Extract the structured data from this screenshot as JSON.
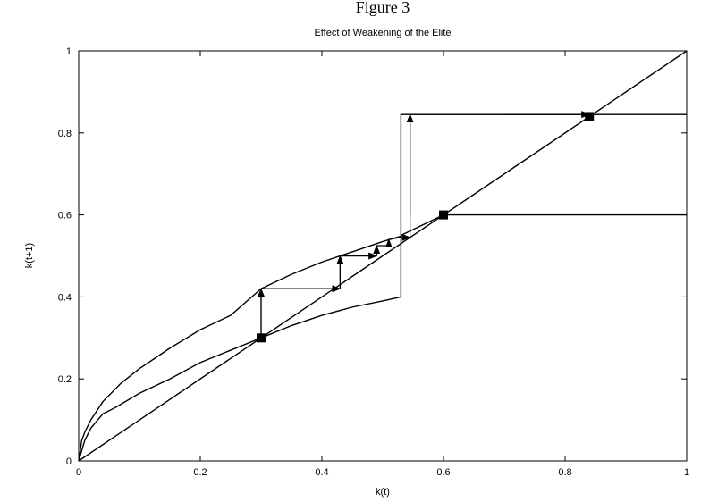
{
  "figure_heading": "Figure 3",
  "chart_data": {
    "type": "line",
    "title": "Effect of Weakening of the Elite",
    "xlabel": "k(t)",
    "ylabel": "k(t+1)",
    "xlim": [
      0,
      1
    ],
    "ylim": [
      0,
      1
    ],
    "x_ticks": [
      "0",
      "0.2",
      "0.4",
      "0.6",
      "0.8",
      "1"
    ],
    "y_ticks": [
      "0",
      "0.2",
      "0.4",
      "0.6",
      "0.8",
      "1"
    ],
    "grid": false,
    "legend": "none",
    "series": [
      {
        "x": [
          0,
          1
        ],
        "y": [
          0,
          1
        ]
      },
      {
        "x": [
          0,
          0.005,
          0.01,
          0.02,
          0.04,
          0.07,
          0.1,
          0.15,
          0.2,
          0.25,
          0.3,
          0.35,
          0.4,
          0.45,
          0.5,
          0.53
        ],
        "y": [
          0,
          0.05,
          0.07,
          0.1,
          0.145,
          0.19,
          0.225,
          0.275,
          0.32,
          0.355,
          0.42,
          0.455,
          0.485,
          0.51,
          0.535,
          0.548
        ]
      },
      {
        "x": [
          0,
          0.01,
          0.02,
          0.04,
          0.06,
          0.1,
          0.15,
          0.2,
          0.25,
          0.3,
          0.35,
          0.4,
          0.45,
          0.5,
          0.53,
          0.53,
          1.0
        ],
        "y": [
          0,
          0.05,
          0.08,
          0.115,
          0.13,
          0.165,
          0.2,
          0.24,
          0.27,
          0.3,
          0.33,
          0.355,
          0.375,
          0.39,
          0.4,
          0.845,
          0.845
        ]
      },
      {
        "x": [
          0.53,
          0.6,
          1.0
        ],
        "y": [
          0.55,
          0.6,
          0.6
        ]
      }
    ],
    "iteration_path": [
      [
        0.3,
        0.3
      ],
      [
        0.3,
        0.42
      ],
      [
        0.43,
        0.42
      ],
      [
        0.43,
        0.5
      ],
      [
        0.49,
        0.5
      ],
      [
        0.49,
        0.525
      ],
      [
        0.51,
        0.525
      ],
      [
        0.51,
        0.54
      ],
      [
        0.53,
        0.545
      ],
      [
        0.545,
        0.545
      ],
      [
        0.545,
        0.845
      ],
      [
        0.84,
        0.845
      ]
    ],
    "arrows": [
      {
        "from": [
          0.3,
          0.3
        ],
        "to": [
          0.3,
          0.42
        ]
      },
      {
        "from": [
          0.3,
          0.42
        ],
        "to": [
          0.43,
          0.42
        ]
      },
      {
        "from": [
          0.43,
          0.42
        ],
        "to": [
          0.43,
          0.5
        ]
      },
      {
        "from": [
          0.43,
          0.5
        ],
        "to": [
          0.49,
          0.5
        ]
      },
      {
        "from": [
          0.49,
          0.5
        ],
        "to": [
          0.49,
          0.525
        ]
      },
      {
        "from": [
          0.51,
          0.525
        ],
        "to": [
          0.51,
          0.54
        ]
      },
      {
        "from": [
          0.53,
          0.545
        ],
        "to": [
          0.545,
          0.545
        ]
      },
      {
        "from": [
          0.545,
          0.6
        ],
        "to": [
          0.545,
          0.845
        ]
      },
      {
        "from": [
          0.7,
          0.845
        ],
        "to": [
          0.84,
          0.845
        ]
      }
    ],
    "fixed_points": [
      {
        "x": 0.3,
        "y": 0.3
      },
      {
        "x": 0.6,
        "y": 0.6
      },
      {
        "x": 0.84,
        "y": 0.84
      }
    ]
  }
}
